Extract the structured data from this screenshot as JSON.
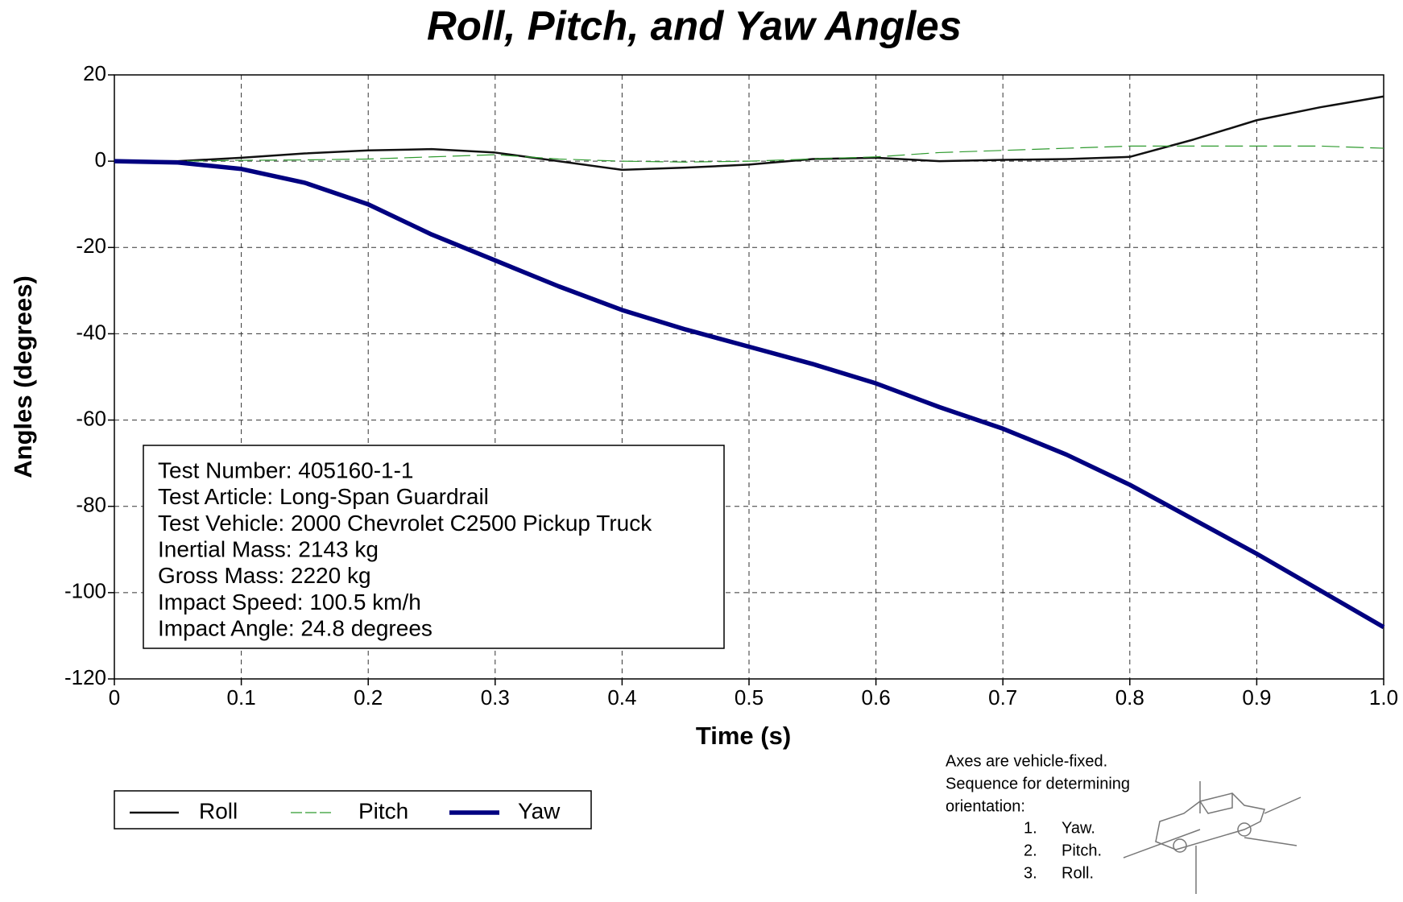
{
  "chart_data": {
    "type": "line",
    "title": "Roll, Pitch, and Yaw Angles",
    "x_label": "Time (s)",
    "y_label": "Angles (degrees)",
    "x": [
      0,
      0.05,
      0.1,
      0.15,
      0.2,
      0.25,
      0.3,
      0.35,
      0.4,
      0.45,
      0.5,
      0.55,
      0.6,
      0.65,
      0.7,
      0.75,
      0.8,
      0.85,
      0.9,
      0.95,
      1
    ],
    "series": [
      {
        "name": "Roll",
        "color": "#111111",
        "values": [
          0,
          0,
          0.8,
          1.8,
          2.5,
          2.8,
          2,
          0,
          -2,
          -1.5,
          -0.8,
          0.5,
          0.8,
          0,
          0.3,
          0.5,
          1,
          5,
          9.5,
          12.5,
          15
        ]
      },
      {
        "name": "Pitch",
        "color": "#2e9a2e",
        "values": [
          0,
          0,
          0.2,
          0.3,
          0.5,
          1,
          1.5,
          0.5,
          0,
          -0.2,
          0,
          0.5,
          1,
          2,
          2.5,
          3,
          3.5,
          3.5,
          3.5,
          3.5,
          3
        ]
      },
      {
        "name": "Yaw",
        "color": "#000080",
        "values": [
          0,
          -0.3,
          -1.8,
          -5,
          -10,
          -17,
          -23,
          -29,
          -34.5,
          -39,
          -43,
          -47,
          -51.5,
          -57,
          -62,
          -68,
          -75,
          -83,
          -91,
          -99.5,
          -108
        ]
      }
    ],
    "xlim": [
      0,
      1
    ],
    "ylim": [
      -120,
      20
    ],
    "xticks": [
      0,
      0.1,
      0.2,
      0.3,
      0.4,
      0.5,
      0.6,
      0.7,
      0.8,
      0.9,
      {
        "value": 1,
        "label": "1.0"
      }
    ],
    "yticks": [
      -120,
      -100,
      -80,
      -60,
      -40,
      -20,
      0,
      20
    ],
    "grid": true,
    "info_box": [
      "Test Number: 405160-1-1",
      "Test Article: Long-Span Guardrail",
      "Test Vehicle: 2000 Chevrolet C2500 Pickup Truck",
      "Inertial Mass: 2143 kg",
      "Gross Mass: 2220 kg",
      "Impact Speed: 100.5 km/h",
      "Impact Angle: 24.8 degrees"
    ],
    "note": [
      "Axes are vehicle-fixed.",
      "Sequence for determining",
      "orientation:"
    ],
    "sequence": [
      {
        "number": "1.",
        "text": "Yaw."
      },
      {
        "number": "2.",
        "text": "Pitch."
      },
      {
        "number": "3.",
        "text": "Roll."
      }
    ]
  }
}
